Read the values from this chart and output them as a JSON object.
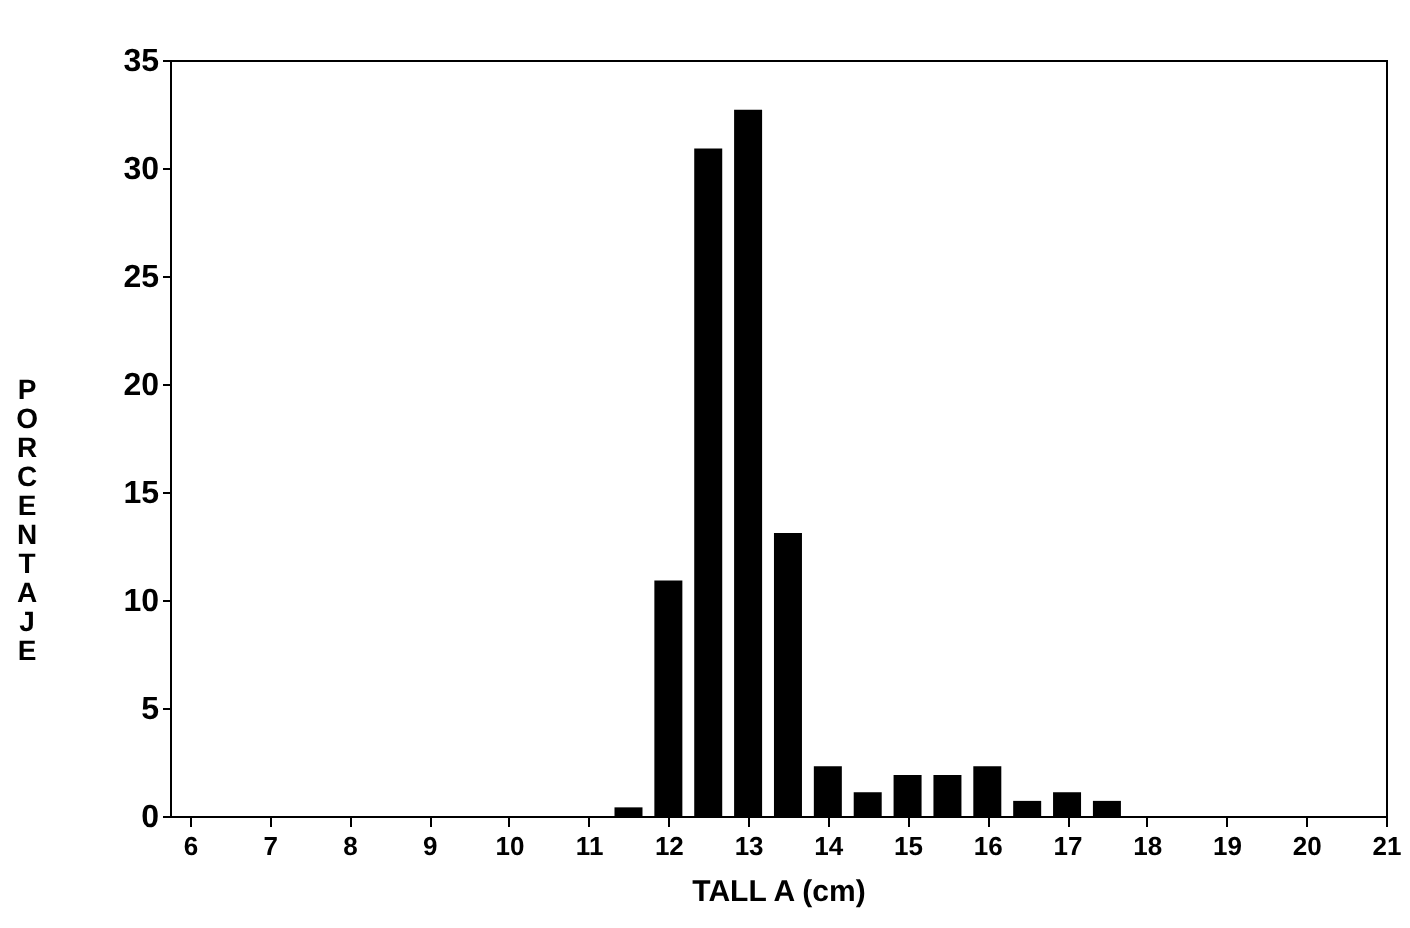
{
  "chart_data": {
    "type": "bar",
    "xlabel": "TALL A (cm)",
    "ylabel": "PORCENTAJE",
    "x": [
      11.5,
      12,
      12.5,
      13,
      13.5,
      14,
      14.5,
      15,
      15.5,
      16,
      16.5,
      17,
      17.5
    ],
    "values": [
      0.4,
      10.9,
      30.9,
      32.7,
      13.1,
      2.3,
      1.1,
      1.9,
      1.9,
      2.3,
      0.7,
      1.1,
      0.7
    ],
    "color": "#000000",
    "xlim": [
      5.75,
      21
    ],
    "xticks": [
      6,
      7,
      8,
      9,
      10,
      11,
      12,
      13,
      14,
      15,
      16,
      17,
      18,
      19,
      20,
      21
    ],
    "ylim": [
      0,
      35
    ],
    "yticks": [
      0,
      5,
      10,
      15,
      20,
      25,
      30,
      35
    ],
    "grid": false
  }
}
